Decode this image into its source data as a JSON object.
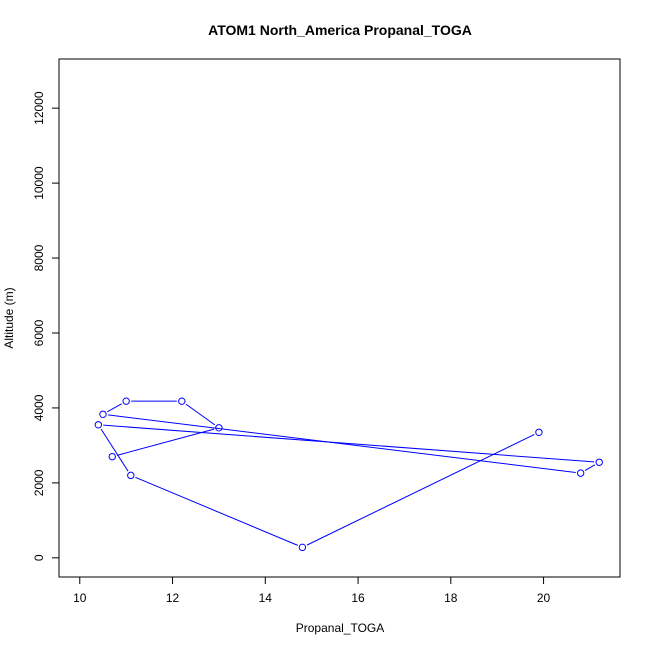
{
  "chart_data": {
    "type": "line",
    "title": "ATOM1 North_America Propanal_TOGA",
    "xlabel": "Propanal_TOGA",
    "ylabel": "Altitude (m)",
    "xlim": [
      10,
      21.2
    ],
    "ylim": [
      0,
      12800
    ],
    "x_ticks": [
      "10",
      "12",
      "14",
      "16",
      "18",
      "20"
    ],
    "y_ticks": [
      "0",
      "2000",
      "4000",
      "6000",
      "8000",
      "10000",
      "12000"
    ],
    "series": [
      {
        "color": "#0000ff",
        "marker": "open-circle",
        "points": [
          {
            "x": 19.9,
            "y": 3350
          },
          {
            "x": 14.8,
            "y": 280
          },
          {
            "x": 11.1,
            "y": 2200
          },
          {
            "x": 10.4,
            "y": 3550
          },
          {
            "x": 21.2,
            "y": 2550
          },
          {
            "x": 20.8,
            "y": 2260
          },
          {
            "x": 10.5,
            "y": 3830
          },
          {
            "x": 11.0,
            "y": 4180
          },
          {
            "x": 12.2,
            "y": 4180
          },
          {
            "x": 13.0,
            "y": 3470
          },
          {
            "x": 10.7,
            "y": 2700
          }
        ]
      }
    ]
  }
}
